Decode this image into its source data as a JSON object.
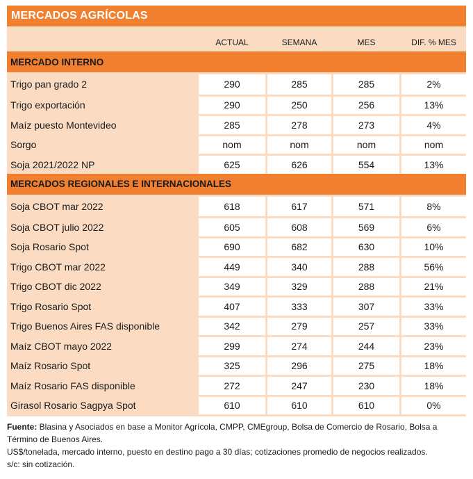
{
  "title": "MERCADOS AGRÍCOLAS",
  "columns": [
    "ACTUAL",
    "SEMANA",
    "MES",
    "DIF. % MES"
  ],
  "sections": [
    {
      "name": "MERCADO INTERNO",
      "rows": [
        {
          "label": "Trigo pan grado 2",
          "actual": "290",
          "semana": "285",
          "mes": "285",
          "dif": "2%"
        },
        {
          "label": "Trigo exportación",
          "actual": "290",
          "semana": "250",
          "mes": "256",
          "dif": "13%"
        },
        {
          "label": "Maíz puesto Montevideo",
          "actual": "285",
          "semana": "278",
          "mes": "273",
          "dif": "4%"
        },
        {
          "label": "Sorgo",
          "actual": "nom",
          "semana": "nom",
          "mes": "nom",
          "dif": "nom"
        },
        {
          "label": "Soja 2021/2022 NP",
          "actual": "625",
          "semana": "626",
          "mes": "554",
          "dif": "13%"
        }
      ]
    },
    {
      "name": "MERCADOS REGIONALES E INTERNACIONALES",
      "rows": [
        {
          "label": "Soja CBOT mar 2022",
          "actual": "618",
          "semana": "617",
          "mes": "571",
          "dif": "8%"
        },
        {
          "label": "Soja CBOT julio 2022",
          "actual": "605",
          "semana": "608",
          "mes": "569",
          "dif": "6%"
        },
        {
          "label": "Soja Rosario Spot",
          "actual": "690",
          "semana": "682",
          "mes": "630",
          "dif": "10%"
        },
        {
          "label": "Trigo CBOT mar 2022",
          "actual": "449",
          "semana": "340",
          "mes": "288",
          "dif": "56%"
        },
        {
          "label": "Trigo CBOT dic 2022",
          "actual": "349",
          "semana": "329",
          "mes": "288",
          "dif": "21%"
        },
        {
          "label": "Trigo Rosario Spot",
          "actual": "407",
          "semana": "333",
          "mes": "307",
          "dif": "33%"
        },
        {
          "label": "Trigo Buenos Aires FAS disponible",
          "actual": "342",
          "semana": "279",
          "mes": "257",
          "dif": "33%"
        },
        {
          "label": "Maíz CBOT mayo 2022",
          "actual": "299",
          "semana": "274",
          "mes": "244",
          "dif": "23%"
        },
        {
          "label": "Maíz Rosario Spot",
          "actual": "325",
          "semana": "296",
          "mes": "275",
          "dif": "18%"
        },
        {
          "label": "Maíz Rosario FAS disponible",
          "actual": "272",
          "semana": "247",
          "mes": "230",
          "dif": "18%"
        },
        {
          "label": "Girasol Rosario Sagpya Spot",
          "actual": "610",
          "semana": "610",
          "mes": "610",
          "dif": "0%"
        }
      ]
    }
  ],
  "notes": {
    "source_label": "Fuente:",
    "source_text": " Blasina y Asociados en base a Monitor Agrícola, CMPP, CMEgroup, Bolsa de Comercio de Rosario, Bolsa a Término de Buenos Aires.",
    "line2": "US$/tonelada, mercado interno, puesto en destino pago a 30 días; cotizaciones promedio de negocios realizados.",
    "line3": "s/c: sin cotización."
  }
}
